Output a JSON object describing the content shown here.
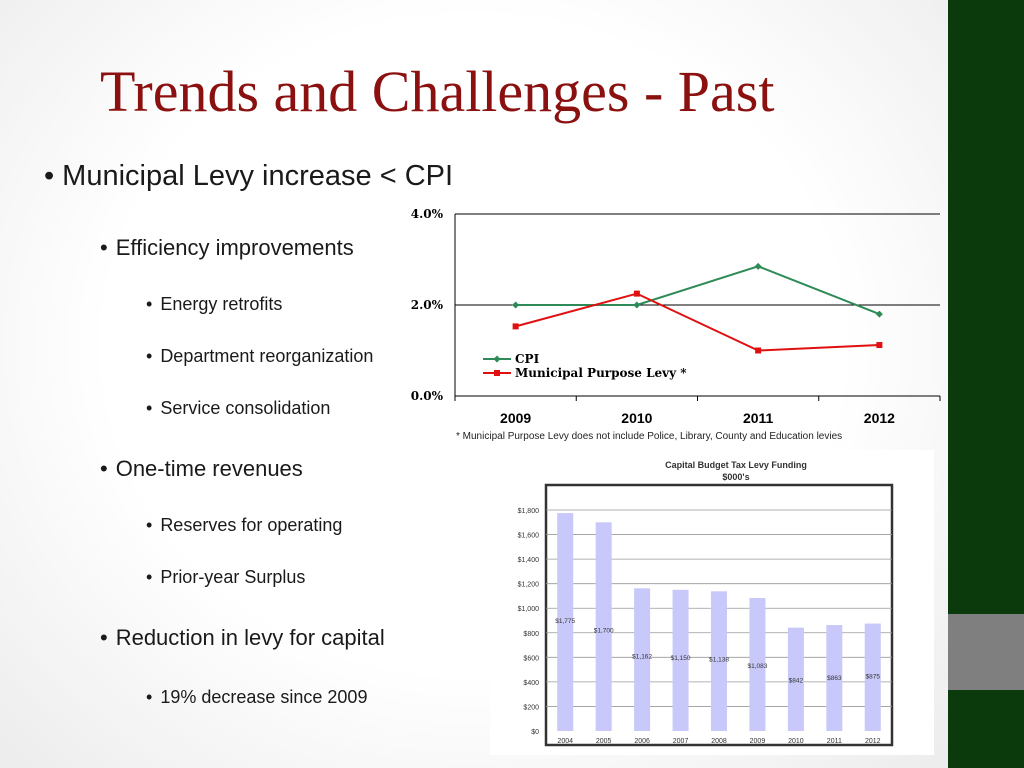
{
  "slide": {
    "title": "Trends and Challenges - Past",
    "bullets": {
      "main": "Municipal Levy increase < CPI",
      "efficiency": "Efficiency improvements",
      "energy": "Energy retrofits",
      "reorg": "Department reorganization",
      "consolidation": "Service consolidation",
      "one_time": "One-time revenues",
      "reserves": "Reserves for operating",
      "surplus": "Prior-year Surplus",
      "reduction": "Reduction in levy for capital",
      "decrease": "19% decrease since 2009"
    },
    "footnote": "* Municipal Purpose Levy does not include Police, Library, County and Education levies"
  },
  "colors": {
    "title": "#8b1010",
    "cpi": "#2e8b57",
    "levy": "#e01010",
    "bar": "#c8c8fa",
    "side": "#0b3a0d"
  },
  "chart_data": [
    {
      "type": "line",
      "x": [
        "2009",
        "2010",
        "2011",
        "2012"
      ],
      "ylim": [
        0,
        4
      ],
      "yticks": [
        "0.0%",
        "2.0%",
        "4.0%"
      ],
      "series": [
        {
          "name": "CPI",
          "values": [
            2.0,
            2.0,
            2.85,
            1.8
          ]
        },
        {
          "name": "Municipal Purpose Levy *",
          "values": [
            1.53,
            2.25,
            1.0,
            1.12
          ]
        }
      ],
      "legend": "lower-left"
    },
    {
      "type": "bar",
      "title": "Capital Budget Tax Levy Funding",
      "subtitle": "$000's",
      "categories": [
        "2004",
        "2005",
        "2006",
        "2007",
        "2008",
        "2009",
        "2010",
        "2011",
        "2012"
      ],
      "values": [
        1775,
        1700,
        1162,
        1150,
        1138,
        1083,
        842,
        863,
        875
      ],
      "labels": [
        "$1,775",
        "$1,700",
        "$1,162",
        "$1,150",
        "$1,138",
        "$1,083",
        "$842",
        "$863",
        "$875"
      ],
      "ylim": [
        0,
        1800
      ],
      "yticks": [
        "$0",
        "$200",
        "$400",
        "$600",
        "$800",
        "$1,000",
        "$1,200",
        "$1,400",
        "$1,600",
        "$1,800"
      ]
    }
  ]
}
